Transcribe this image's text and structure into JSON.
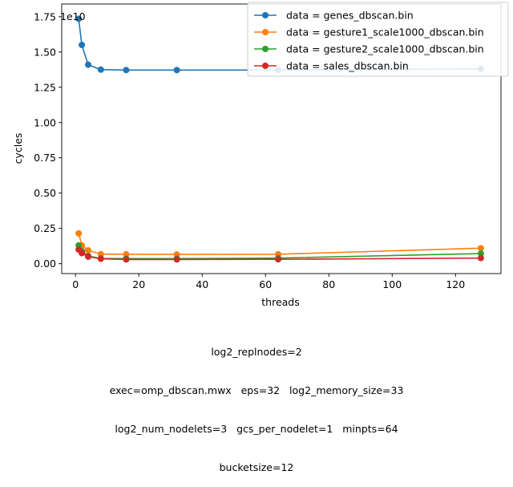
{
  "chart_data": {
    "type": "line",
    "xlabel": "threads",
    "ylabel": "cycles",
    "offset_text": "1e10",
    "xlim": [
      -4.35,
      134.35
    ],
    "ylim": [
      -0.07,
      1.84
    ],
    "y_scale_factor": 10000000000,
    "xticks": [
      0,
      20,
      40,
      60,
      80,
      100,
      120
    ],
    "yticks": [
      0.0,
      0.25,
      0.5,
      0.75,
      1.0,
      1.25,
      1.5,
      1.75
    ],
    "ytick_labels": [
      "0.00",
      "0.25",
      "0.50",
      "0.75",
      "1.00",
      "1.25",
      "1.50",
      "1.75"
    ],
    "grid": false,
    "legend_position": "top-right",
    "x": [
      1,
      2,
      4,
      8,
      16,
      32,
      64,
      128
    ],
    "series": [
      {
        "name": "data = genes_dbscan.bin",
        "color": "#1f77b4",
        "values": [
          1.735,
          1.55,
          1.41,
          1.375,
          1.372,
          1.372,
          1.372,
          1.38
        ]
      },
      {
        "name": "data = gesture1_scale1000_dbscan.bin",
        "color": "#ff7f0e",
        "values": [
          0.215,
          0.13,
          0.095,
          0.068,
          0.067,
          0.066,
          0.067,
          0.11
        ]
      },
      {
        "name": "data = gesture2_scale1000_dbscan.bin",
        "color": "#2ca02c",
        "values": [
          0.13,
          0.09,
          0.055,
          0.037,
          0.036,
          0.036,
          0.04,
          0.072
        ]
      },
      {
        "name": "data = sales_dbscan.bin",
        "color": "#d62728",
        "values": [
          0.1,
          0.075,
          0.05,
          0.035,
          0.03,
          0.03,
          0.031,
          0.04
        ]
      }
    ]
  },
  "caption": {
    "lines": [
      "log2_replnodes=2",
      "exec=omp_dbscan.mwx   eps=32   log2_memory_size=33",
      "log2_num_nodelets=3   gcs_per_nodelet=1   minpts=64",
      "bucketsize=12"
    ]
  }
}
